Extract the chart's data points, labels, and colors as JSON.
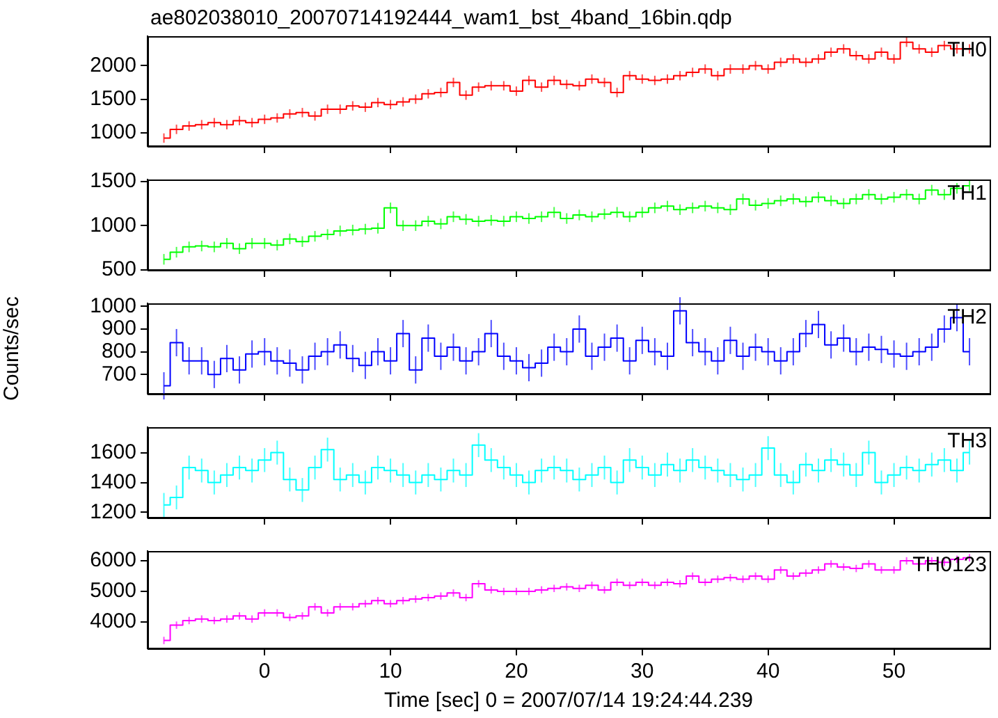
{
  "chart_data": [
    {
      "type": "step",
      "title": "ae802038010_20070714192444_wam1_bst_4band_16bin.qdp",
      "annotations": [
        "TH0"
      ],
      "tick_labels": "y",
      "legend": false,
      "grid": false,
      "xlim": [
        -9.3,
        57.6
      ],
      "xticks": [
        0,
        10,
        20,
        30,
        40,
        50
      ],
      "ylim": [
        800,
        2440
      ],
      "yticks": [
        1000,
        1500,
        2000
      ],
      "x": [
        -8,
        -7,
        -6,
        -5,
        -4,
        -3,
        -2,
        -1,
        0,
        1,
        2,
        3,
        4,
        5,
        6,
        7,
        8,
        9,
        10,
        11,
        12,
        13,
        14,
        15,
        16,
        17,
        18,
        19,
        20,
        21,
        22,
        23,
        24,
        25,
        26,
        27,
        28,
        29,
        30,
        31,
        32,
        33,
        34,
        35,
        36,
        37,
        38,
        39,
        40,
        41,
        42,
        43,
        44,
        45,
        46,
        47,
        48,
        49,
        50,
        51,
        52,
        53,
        54,
        55,
        56
      ],
      "series": [
        {
          "color": "#ff0000",
          "values": [
            920,
            1050,
            1100,
            1120,
            1150,
            1120,
            1180,
            1150,
            1200,
            1220,
            1280,
            1300,
            1250,
            1350,
            1350,
            1400,
            1380,
            1450,
            1420,
            1460,
            1500,
            1580,
            1600,
            1750,
            1560,
            1680,
            1700,
            1700,
            1620,
            1780,
            1680,
            1780,
            1720,
            1700,
            1800,
            1750,
            1600,
            1850,
            1800,
            1780,
            1800,
            1850,
            1900,
            1950,
            1850,
            1950,
            1950,
            2000,
            1950,
            2050,
            2100,
            2050,
            2100,
            2200,
            2250,
            2150,
            2100,
            2200,
            2100,
            2350,
            2250,
            2200,
            2300,
            2250,
            2250
          ],
          "errors": [
            70,
            70,
            70,
            70,
            70,
            70,
            70,
            70,
            70,
            70,
            70,
            70,
            70,
            70,
            70,
            70,
            70,
            70,
            70,
            70,
            70,
            70,
            70,
            70,
            70,
            70,
            70,
            70,
            70,
            70,
            70,
            70,
            70,
            70,
            70,
            70,
            70,
            70,
            70,
            70,
            70,
            70,
            70,
            70,
            70,
            70,
            70,
            70,
            70,
            70,
            70,
            70,
            70,
            70,
            70,
            70,
            70,
            70,
            70,
            70,
            70,
            70,
            70,
            70,
            70
          ]
        }
      ]
    },
    {
      "type": "step",
      "annotations": [
        "TH1"
      ],
      "tick_labels": "y",
      "legend": false,
      "grid": false,
      "xlim": [
        -9.3,
        57.6
      ],
      "xticks": [
        0,
        10,
        20,
        30,
        40,
        50
      ],
      "ylim": [
        500,
        1520
      ],
      "yticks": [
        500,
        1000,
        1500
      ],
      "x": [
        -8,
        -7,
        -6,
        -5,
        -4,
        -3,
        -2,
        -1,
        0,
        1,
        2,
        3,
        4,
        5,
        6,
        7,
        8,
        9,
        10,
        11,
        12,
        13,
        14,
        15,
        16,
        17,
        18,
        19,
        20,
        21,
        22,
        23,
        24,
        25,
        26,
        27,
        28,
        29,
        30,
        31,
        32,
        33,
        34,
        35,
        36,
        37,
        38,
        39,
        40,
        41,
        42,
        43,
        44,
        45,
        46,
        47,
        48,
        49,
        50,
        51,
        52,
        53,
        54,
        55,
        56
      ],
      "series": [
        {
          "color": "#00ff00",
          "values": [
            620,
            700,
            760,
            770,
            760,
            800,
            740,
            800,
            800,
            780,
            850,
            820,
            880,
            900,
            940,
            950,
            960,
            970,
            1200,
            1000,
            1000,
            1050,
            1020,
            1100,
            1070,
            1050,
            1060,
            1050,
            1100,
            1080,
            1100,
            1150,
            1080,
            1120,
            1100,
            1130,
            1150,
            1100,
            1150,
            1200,
            1220,
            1180,
            1200,
            1220,
            1200,
            1180,
            1300,
            1230,
            1250,
            1280,
            1300,
            1270,
            1320,
            1280,
            1250,
            1300,
            1350,
            1300,
            1320,
            1350,
            1300,
            1400,
            1350,
            1420,
            1450
          ],
          "errors": [
            60,
            60,
            60,
            60,
            60,
            60,
            60,
            60,
            60,
            60,
            60,
            60,
            60,
            60,
            60,
            60,
            60,
            60,
            60,
            60,
            60,
            60,
            60,
            60,
            60,
            60,
            60,
            60,
            60,
            60,
            60,
            60,
            60,
            60,
            60,
            60,
            60,
            60,
            60,
            60,
            60,
            60,
            60,
            60,
            60,
            60,
            60,
            60,
            60,
            60,
            60,
            60,
            60,
            60,
            60,
            60,
            60,
            60,
            60,
            60,
            60,
            60,
            60,
            60,
            60
          ]
        }
      ]
    },
    {
      "type": "step",
      "annotations": [
        "TH2"
      ],
      "ylabel": "Counts/sec",
      "tick_labels": "y",
      "legend": false,
      "grid": false,
      "xlim": [
        -9.3,
        57.6
      ],
      "xticks": [
        0,
        10,
        20,
        30,
        40,
        50
      ],
      "ylim": [
        615,
        1013
      ],
      "yticks": [
        700,
        800,
        900,
        1000
      ],
      "x": [
        -8,
        -7,
        -6,
        -5,
        -4,
        -3,
        -2,
        -1,
        0,
        1,
        2,
        3,
        4,
        5,
        6,
        7,
        8,
        9,
        10,
        11,
        12,
        13,
        14,
        15,
        16,
        17,
        18,
        19,
        20,
        21,
        22,
        23,
        24,
        25,
        26,
        27,
        28,
        29,
        30,
        31,
        32,
        33,
        34,
        35,
        36,
        37,
        38,
        39,
        40,
        41,
        42,
        43,
        44,
        45,
        46,
        47,
        48,
        49,
        50,
        51,
        52,
        53,
        54,
        55,
        56
      ],
      "series": [
        {
          "color": "#0000ff",
          "values": [
            650,
            840,
            760,
            760,
            700,
            770,
            720,
            790,
            800,
            760,
            750,
            720,
            780,
            800,
            830,
            770,
            740,
            800,
            760,
            880,
            720,
            860,
            780,
            820,
            760,
            800,
            880,
            780,
            760,
            730,
            750,
            820,
            800,
            900,
            780,
            820,
            860,
            760,
            850,
            800,
            780,
            980,
            840,
            800,
            760,
            850,
            780,
            820,
            800,
            760,
            800,
            880,
            920,
            830,
            860,
            800,
            820,
            810,
            790,
            780,
            800,
            820,
            900,
            950,
            800
          ],
          "errors": [
            60,
            60,
            60,
            60,
            60,
            60,
            60,
            60,
            60,
            60,
            60,
            60,
            60,
            60,
            60,
            60,
            60,
            60,
            60,
            60,
            60,
            60,
            60,
            60,
            60,
            60,
            60,
            60,
            60,
            60,
            60,
            60,
            60,
            60,
            60,
            60,
            60,
            60,
            60,
            60,
            60,
            60,
            60,
            60,
            60,
            60,
            60,
            60,
            60,
            60,
            60,
            60,
            60,
            60,
            60,
            60,
            60,
            60,
            60,
            60,
            60,
            60,
            60,
            60,
            60
          ]
        }
      ]
    },
    {
      "type": "step",
      "annotations": [
        "TH3"
      ],
      "tick_labels": "y",
      "legend": false,
      "grid": false,
      "xlim": [
        -9.3,
        57.6
      ],
      "xticks": [
        0,
        10,
        20,
        30,
        40,
        50
      ],
      "ylim": [
        1165,
        1770
      ],
      "yticks": [
        1200,
        1400,
        1600
      ],
      "x": [
        -8,
        -7,
        -6,
        -5,
        -4,
        -3,
        -2,
        -1,
        0,
        1,
        2,
        3,
        4,
        5,
        6,
        7,
        8,
        9,
        10,
        11,
        12,
        13,
        14,
        15,
        16,
        17,
        18,
        19,
        20,
        21,
        22,
        23,
        24,
        25,
        26,
        27,
        28,
        29,
        30,
        31,
        32,
        33,
        34,
        35,
        36,
        37,
        38,
        39,
        40,
        41,
        42,
        43,
        44,
        45,
        46,
        47,
        48,
        49,
        50,
        51,
        52,
        53,
        54,
        55,
        56
      ],
      "series": [
        {
          "color": "#00ffff",
          "values": [
            1250,
            1300,
            1500,
            1480,
            1400,
            1450,
            1500,
            1480,
            1550,
            1600,
            1420,
            1350,
            1500,
            1620,
            1420,
            1450,
            1400,
            1500,
            1480,
            1450,
            1400,
            1450,
            1420,
            1480,
            1450,
            1650,
            1550,
            1500,
            1450,
            1400,
            1480,
            1500,
            1480,
            1420,
            1450,
            1500,
            1400,
            1550,
            1500,
            1450,
            1520,
            1480,
            1550,
            1500,
            1480,
            1450,
            1420,
            1450,
            1630,
            1450,
            1400,
            1520,
            1480,
            1550,
            1520,
            1450,
            1600,
            1400,
            1450,
            1500,
            1480,
            1520,
            1550,
            1480,
            1600
          ],
          "errors": [
            80,
            80,
            80,
            80,
            80,
            80,
            80,
            80,
            80,
            80,
            80,
            80,
            80,
            80,
            80,
            80,
            80,
            80,
            80,
            80,
            80,
            80,
            80,
            80,
            80,
            80,
            80,
            80,
            80,
            80,
            80,
            80,
            80,
            80,
            80,
            80,
            80,
            80,
            80,
            80,
            80,
            80,
            80,
            80,
            80,
            80,
            80,
            80,
            80,
            80,
            80,
            80,
            80,
            80,
            80,
            80,
            80,
            80,
            80,
            80,
            80,
            80,
            80,
            80,
            80
          ]
        }
      ]
    },
    {
      "type": "step",
      "annotations": [
        "TH0123"
      ],
      "xlabel": "Time [sec] 0 = 2007/07/14 19:24:44.239",
      "legend": false,
      "grid": false,
      "xlim": [
        -9.3,
        57.6
      ],
      "xticks": [
        0,
        10,
        20,
        30,
        40,
        50
      ],
      "ylim": [
        3140,
        6320
      ],
      "yticks": [
        4000,
        5000,
        6000
      ],
      "x": [
        -8,
        -7,
        -6,
        -5,
        -4,
        -3,
        -2,
        -1,
        0,
        1,
        2,
        3,
        4,
        5,
        6,
        7,
        8,
        9,
        10,
        11,
        12,
        13,
        14,
        15,
        16,
        17,
        18,
        19,
        20,
        21,
        22,
        23,
        24,
        25,
        26,
        27,
        28,
        29,
        30,
        31,
        32,
        33,
        34,
        35,
        36,
        37,
        38,
        39,
        40,
        41,
        42,
        43,
        44,
        45,
        46,
        47,
        48,
        49,
        50,
        51,
        52,
        53,
        54,
        55,
        56
      ],
      "series": [
        {
          "color": "#ff00ff",
          "values": [
            3400,
            3900,
            4050,
            4100,
            4050,
            4100,
            4200,
            4100,
            4300,
            4300,
            4150,
            4200,
            4500,
            4300,
            4500,
            4500,
            4600,
            4700,
            4600,
            4700,
            4750,
            4800,
            4850,
            4950,
            4800,
            5250,
            5050,
            5000,
            5000,
            5000,
            5050,
            5100,
            5150,
            5100,
            5200,
            5050,
            5300,
            5200,
            5300,
            5200,
            5300,
            5250,
            5500,
            5300,
            5400,
            5450,
            5400,
            5500,
            5400,
            5700,
            5500,
            5600,
            5700,
            5900,
            5800,
            5750,
            5900,
            5700,
            5700,
            6000,
            5900,
            6000,
            5950,
            6050,
            6100
          ],
          "errors": [
            120,
            120,
            120,
            120,
            120,
            120,
            120,
            120,
            120,
            120,
            120,
            120,
            120,
            120,
            120,
            120,
            120,
            120,
            120,
            120,
            120,
            120,
            120,
            120,
            120,
            120,
            120,
            120,
            120,
            120,
            120,
            120,
            120,
            120,
            120,
            120,
            120,
            120,
            120,
            120,
            120,
            120,
            120,
            120,
            120,
            120,
            120,
            120,
            120,
            120,
            120,
            120,
            120,
            120,
            120,
            120,
            120,
            120,
            120,
            120,
            120,
            120,
            120,
            120,
            120
          ]
        }
      ]
    }
  ]
}
